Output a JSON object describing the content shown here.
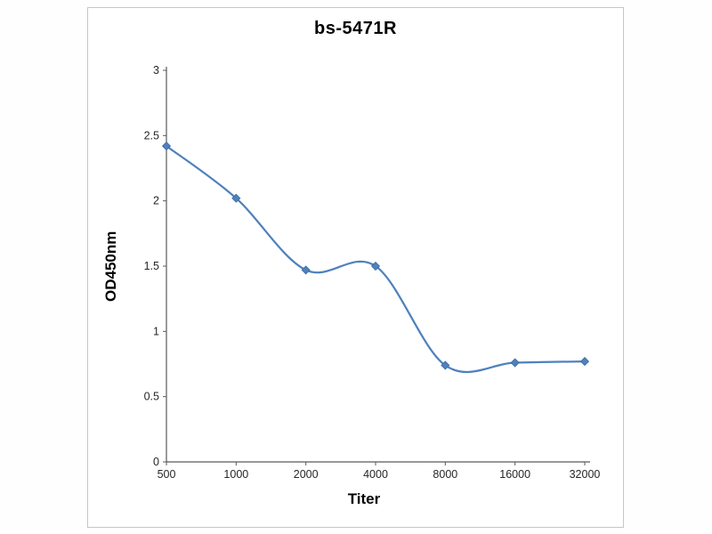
{
  "chart_data": {
    "type": "line",
    "title": "bs-5471R",
    "xlabel": "Titer",
    "ylabel": "OD450nm",
    "categories": [
      "500",
      "1000",
      "2000",
      "4000",
      "8000",
      "16000",
      "32000"
    ],
    "values": [
      2.42,
      2.02,
      1.47,
      1.5,
      0.74,
      0.76,
      0.77
    ],
    "ylim": [
      0,
      3
    ],
    "yticks": [
      "0",
      "0.5",
      "1",
      "1.5",
      "2",
      "2.5",
      "3"
    ],
    "ytick_values": [
      0,
      0.5,
      1,
      1.5,
      2,
      2.5,
      3
    ],
    "grid": false,
    "legend": false,
    "smooth": true,
    "marker": "diamond",
    "line_color": "#4f81bd",
    "marker_color": "#4f81bd",
    "axis_color": "#595959"
  }
}
